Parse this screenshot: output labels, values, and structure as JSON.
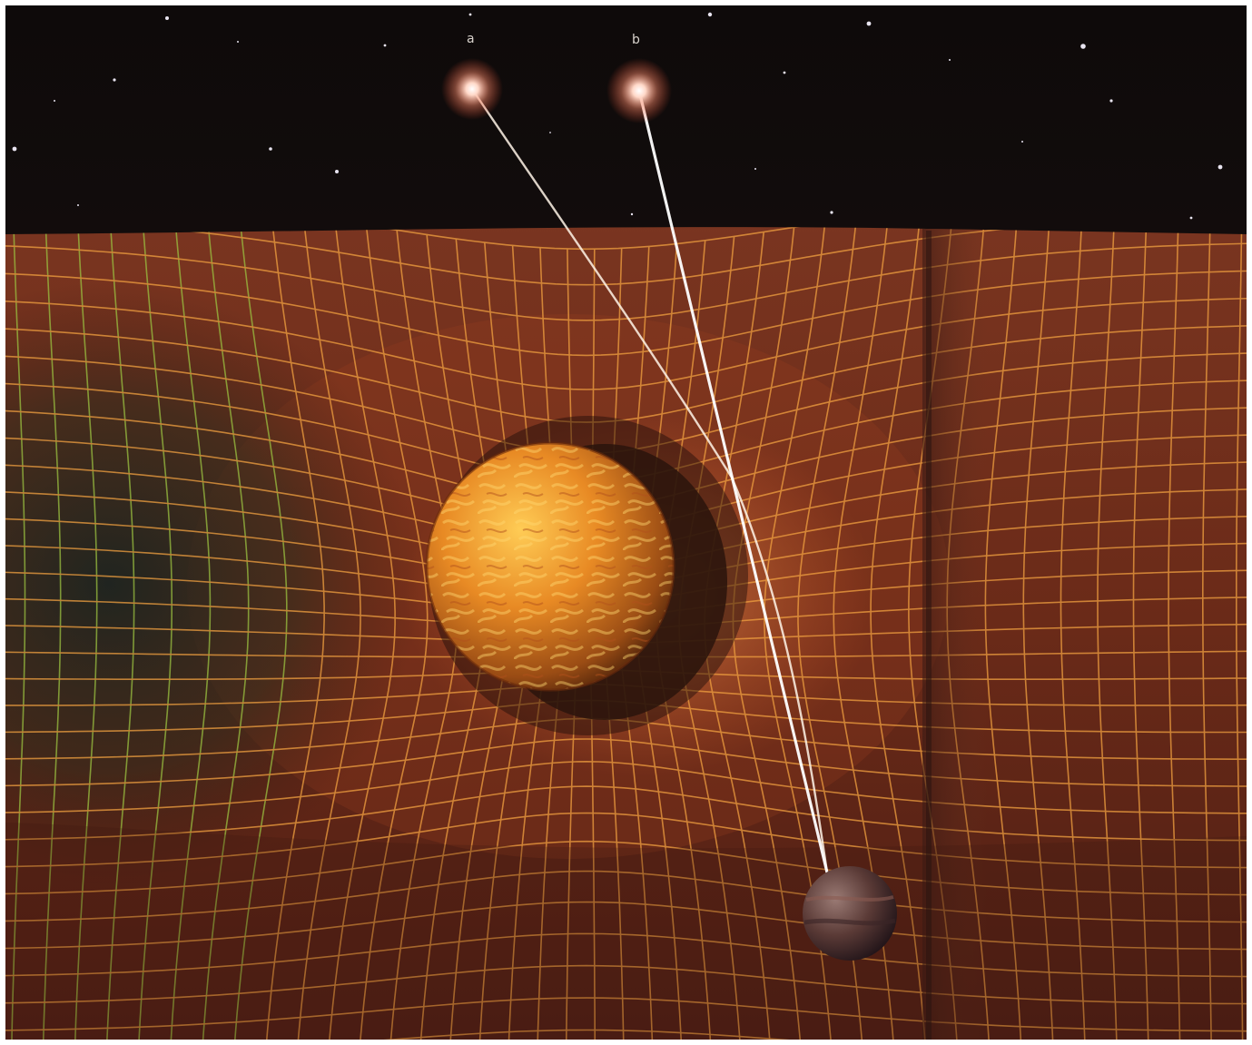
{
  "image": {
    "colors": {
      "sky": "#120c0b",
      "fabric": "#6b2a19",
      "grid": "#f0a040",
      "grid_shadow": "#9ac040",
      "sun": "#e88a24",
      "sun_highlight": "#ffd060",
      "planet": "#5a3a36",
      "light_ray": "#fff4e8",
      "star_glow": "#ff8a6a"
    },
    "star_labels": [
      {
        "id": "a",
        "text": "a"
      },
      {
        "id": "b",
        "text": "b"
      }
    ]
  }
}
